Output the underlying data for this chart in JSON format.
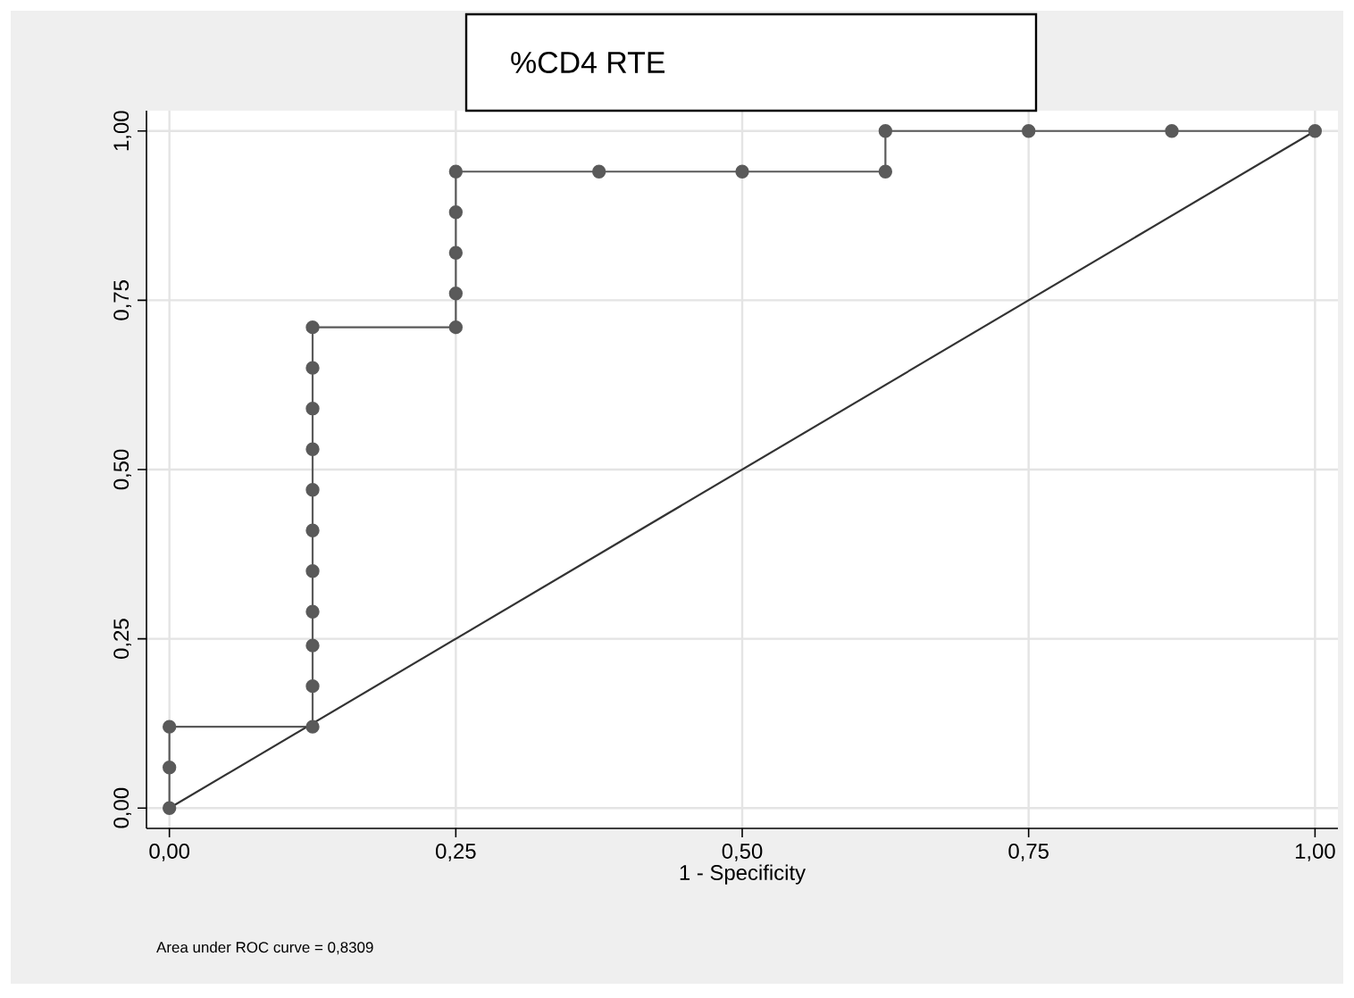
{
  "chart_data": {
    "type": "line",
    "title": "%CD4 RTE",
    "xlabel": "1 - Specificity",
    "annotations": [
      "Area under ROC curve = 0,8309"
    ],
    "series": [
      {
        "x": [
          0,
          0,
          0,
          0.125,
          0.125,
          0.125,
          0.125,
          0.125,
          0.125,
          0.125,
          0.125,
          0.125,
          0.125,
          0.125,
          0.25,
          0.25,
          0.25,
          0.25,
          0.25,
          0.375,
          0.5,
          0.625,
          0.625,
          0.75,
          0.875,
          1
        ],
        "values": [
          0,
          0.06,
          0.12,
          0.12,
          0.18,
          0.24,
          0.29,
          0.35,
          0.41,
          0.47,
          0.53,
          0.59,
          0.65,
          0.71,
          0.71,
          0.76,
          0.82,
          0.88,
          0.94,
          0.94,
          0.94,
          0.94,
          1,
          1,
          1,
          1
        ],
        "color": "#5a5a5a",
        "marker": "circle"
      },
      {
        "x": [
          0,
          1
        ],
        "values": [
          0,
          1
        ],
        "color": "#333333",
        "marker": "none"
      }
    ],
    "xlim": [
      -0.02,
      1.02
    ],
    "ylim": [
      -0.03,
      1.03
    ],
    "xticks": [
      {
        "value": 0,
        "label": "0,00"
      },
      {
        "value": 0.25,
        "label": "0,25"
      },
      {
        "value": 0.5,
        "label": "0,50"
      },
      {
        "value": 0.75,
        "label": "0,75"
      },
      {
        "value": 1,
        "label": "1,00"
      }
    ],
    "yticks": [
      {
        "value": 0,
        "label": "0,00"
      },
      {
        "value": 0.25,
        "label": "0,25"
      },
      {
        "value": 0.5,
        "label": "0,50"
      },
      {
        "value": 0.75,
        "label": "0,75"
      },
      {
        "value": 1,
        "label": "1,00"
      }
    ],
    "grid": true,
    "line_style": "solid"
  }
}
